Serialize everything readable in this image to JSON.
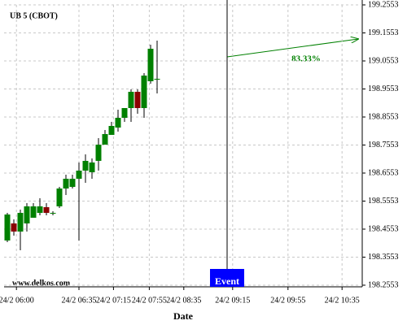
{
  "chart_data": {
    "type": "candlestick",
    "title": "UB 5 (CBOT)",
    "watermark": "www.delkos.com",
    "x_label": "Date",
    "up_color": "#008000",
    "down_color": "#8b0000",
    "grid": true,
    "xlim": [
      0,
      55
    ],
    "xticks": [
      {
        "value": 1.9,
        "label": "24/2 06:00"
      },
      {
        "value": 11.5,
        "label": "24/2 06:35"
      },
      {
        "value": 16.8,
        "label": "24/2 07:15"
      },
      {
        "value": 22.3,
        "label": "24/2 07:55"
      },
      {
        "value": 27.6,
        "label": "24/2 08:35"
      },
      {
        "value": 35.1,
        "label": "24/2 09:15"
      },
      {
        "value": 43.6,
        "label": "24/2 09:55"
      },
      {
        "value": 51.9,
        "label": "24/2 10:35"
      }
    ],
    "ylim": [
      198.2553,
      199.2553
    ],
    "yticks": [
      198.2553,
      198.3553,
      198.4553,
      198.5553,
      198.6553,
      198.7553,
      198.8553,
      198.9553,
      199.0553,
      199.1553,
      199.2553
    ],
    "open": [
      198.4147,
      198.4756,
      198.4466,
      198.4756,
      198.4959,
      198.5133,
      198.5336,
      198.5133,
      198.5365,
      198.6002,
      198.606,
      198.635,
      198.664,
      198.6582,
      198.6988,
      198.7567,
      198.7915,
      198.8176,
      198.8524,
      198.8872,
      198.9452,
      198.8872,
      198.9828,
      198.9915
    ],
    "close": [
      198.5075,
      198.4466,
      198.5133,
      198.5365,
      198.5365,
      198.5365,
      198.5133,
      198.5133,
      198.6002,
      198.635,
      198.635,
      198.664,
      198.6988,
      198.693,
      198.7567,
      198.7944,
      198.8234,
      198.8524,
      198.8872,
      198.9452,
      198.8872,
      199.0031,
      199.0988,
      198.9915
    ],
    "high": [
      198.5133,
      198.4901,
      198.5249,
      198.5481,
      198.5481,
      198.5654,
      198.5481,
      198.5191,
      198.606,
      198.6495,
      198.6495,
      198.693,
      198.722,
      198.7075,
      198.7799,
      198.8089,
      198.8379,
      198.8814,
      198.8872,
      198.9539,
      198.9539,
      199.0118,
      199.1133,
      199.1278
    ],
    "low": [
      198.4089,
      198.4321,
      198.3799,
      198.4466,
      198.4959,
      198.5046,
      198.5046,
      198.5046,
      198.5307,
      198.577,
      198.6002,
      198.4147,
      198.6205,
      198.635,
      198.664,
      198.7567,
      198.7915,
      198.8031,
      198.8379,
      198.8379,
      198.8669,
      198.8524,
      198.9741,
      198.9394
    ],
    "event": {
      "label": "Event",
      "x": 34.25
    },
    "annotation": {
      "value": 83.33,
      "label": "83.33%"
    }
  }
}
